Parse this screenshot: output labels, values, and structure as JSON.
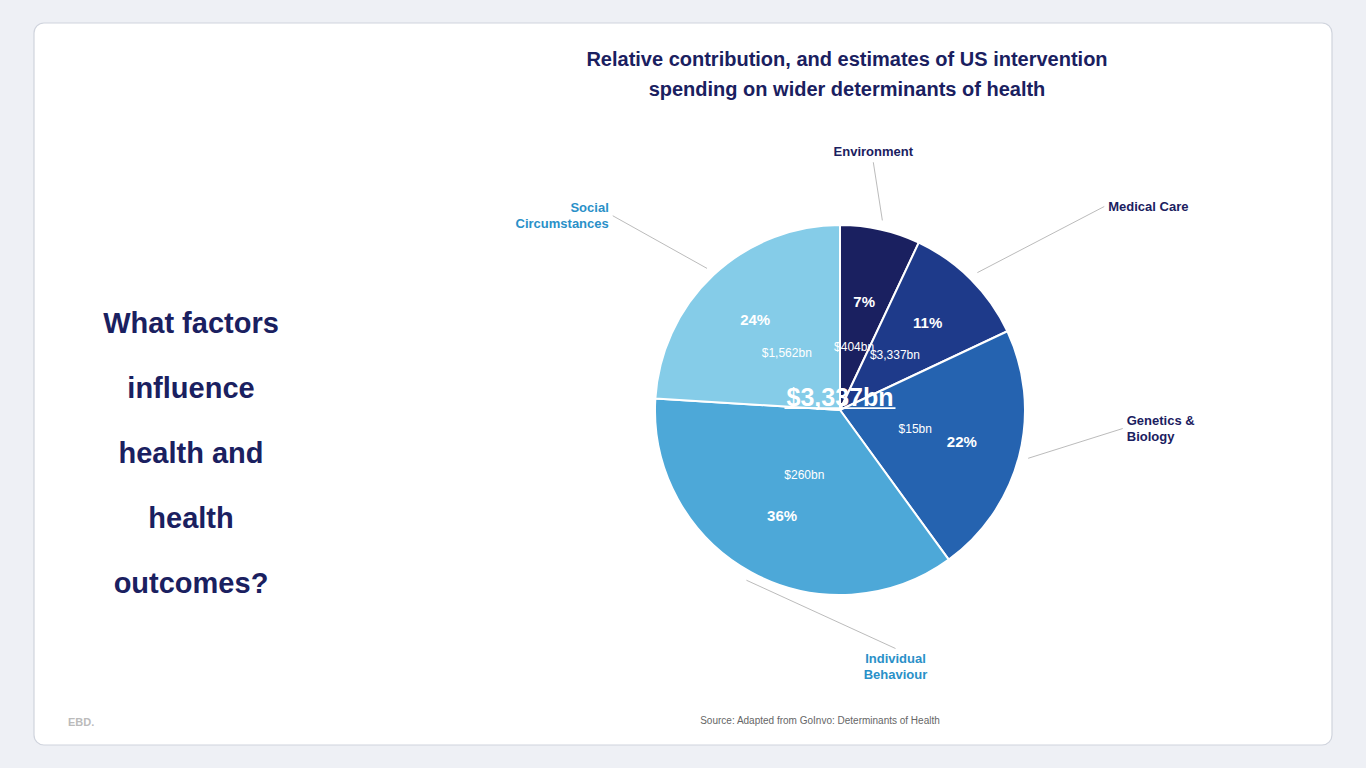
{
  "chart_data": {
    "type": "pie",
    "title": "Relative contribution, and estimates of US intervention\nspending on wider determinants of health",
    "categories": [
      "Environment",
      "Medical Care",
      "Genetics &\nBiology",
      "Individual\nBehaviour",
      "Social\nCircumstances"
    ],
    "values": [
      7,
      11,
      22,
      36,
      24
    ],
    "value_labels": [
      "7%",
      "11%",
      "22%",
      "36%",
      "24%"
    ],
    "amount_labels": [
      "$404bn",
      "$3,337bn",
      "$15bn",
      "$260bn",
      "$1,562bn"
    ],
    "colors": [
      "#1a2060",
      "#1e3a8a",
      "#2563b0",
      "#4da8d8",
      "#85cce8"
    ],
    "data_labels": true,
    "annotations": [
      "What factors",
      "influence",
      "health and",
      "health",
      "outcomes?",
      "EBD.",
      "Source: Adapted from GoInvo: Determinants of Health",
      "$3,337bn"
    ]
  }
}
